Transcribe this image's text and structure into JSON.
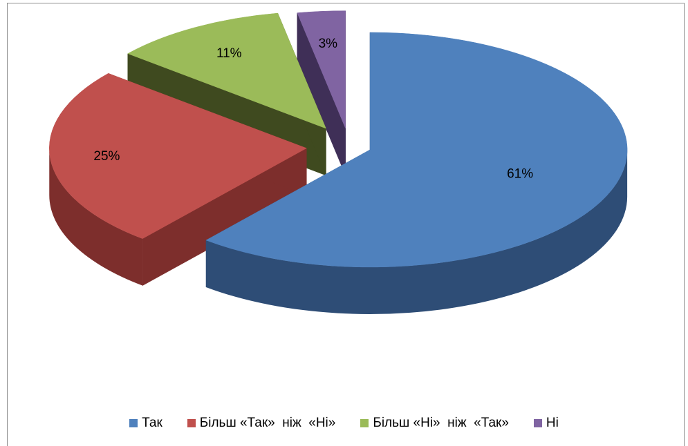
{
  "chart_data": {
    "type": "pie",
    "variant": "3d-exploded",
    "title": "",
    "labels": [
      "Так",
      "Більш «Так»  ніж  «Ні»",
      "Більш «Ні»  ніж  «Так»",
      "Ні"
    ],
    "values": [
      61,
      25,
      11,
      3
    ],
    "data_labels": [
      "61%",
      "25%",
      "11%",
      "3%"
    ],
    "colors": [
      "#4f81bd",
      "#c0504d",
      "#9bbb59",
      "#8064a2"
    ],
    "side_colors": [
      "#2e4d76",
      "#7d2e2c",
      "#3f4a1f",
      "#3f2f57"
    ],
    "legend_position": "bottom"
  }
}
